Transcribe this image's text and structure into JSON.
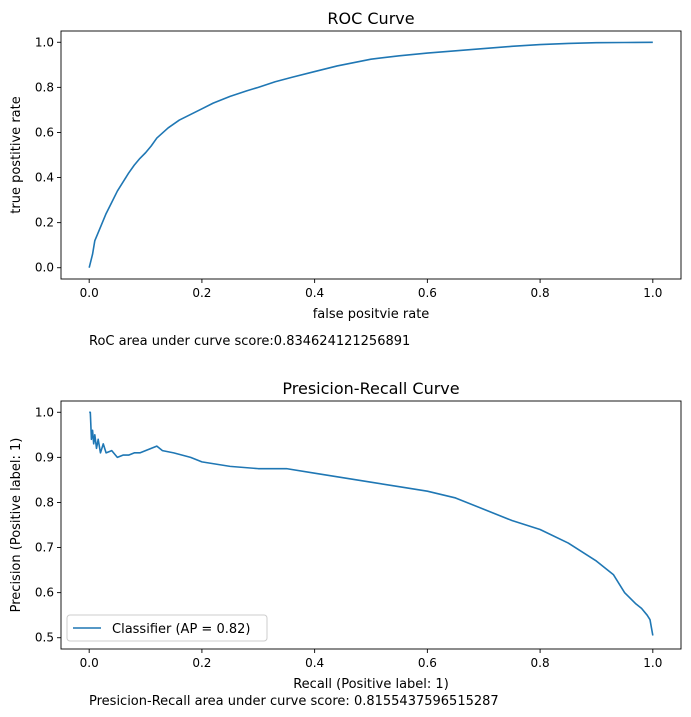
{
  "chart_data": [
    {
      "type": "line",
      "title": "ROC Curve",
      "xlabel": "false positvie rate",
      "ylabel": "true postitive rate",
      "xlim": [
        -0.05,
        1.05
      ],
      "ylim": [
        -0.05,
        1.05
      ],
      "xticks": [
        "0.0",
        "0.2",
        "0.4",
        "0.6",
        "0.8",
        "1.0"
      ],
      "yticks": [
        "0.0",
        "0.2",
        "0.4",
        "0.6",
        "0.8",
        "1.0"
      ],
      "grid": false,
      "color": "#1f77b4",
      "caption": "RoC area under curve score:0.834624121256891",
      "series": [
        {
          "x": [
            0.0,
            0.003,
            0.006,
            0.01,
            0.015,
            0.02,
            0.03,
            0.04,
            0.05,
            0.06,
            0.07,
            0.08,
            0.09,
            0.1,
            0.11,
            0.12,
            0.14,
            0.16,
            0.18,
            0.2,
            0.22,
            0.25,
            0.28,
            0.3,
            0.33,
            0.36,
            0.4,
            0.44,
            0.48,
            0.5,
            0.55,
            0.6,
            0.65,
            0.7,
            0.75,
            0.8,
            0.85,
            0.9,
            0.95,
            1.0
          ],
          "y": [
            0.0,
            0.03,
            0.06,
            0.12,
            0.15,
            0.18,
            0.24,
            0.29,
            0.34,
            0.38,
            0.42,
            0.455,
            0.485,
            0.51,
            0.54,
            0.575,
            0.62,
            0.655,
            0.68,
            0.705,
            0.73,
            0.76,
            0.785,
            0.8,
            0.825,
            0.845,
            0.87,
            0.895,
            0.915,
            0.925,
            0.94,
            0.952,
            0.962,
            0.972,
            0.982,
            0.99,
            0.995,
            0.998,
            0.999,
            1.0
          ]
        }
      ]
    },
    {
      "type": "line",
      "title": "Presicion-Recall Curve",
      "xlabel": "Recall (Positive label: 1)",
      "ylabel": "Precision (Positive label: 1)",
      "xlim": [
        -0.05,
        1.05
      ],
      "ylim": [
        0.475,
        1.025
      ],
      "xticks": [
        "0.0",
        "0.2",
        "0.4",
        "0.6",
        "0.8",
        "1.0"
      ],
      "yticks": [
        "0.5",
        "0.6",
        "0.7",
        "0.8",
        "0.9",
        "1.0"
      ],
      "grid": false,
      "legend_position": "lower-left",
      "color": "#1f77b4",
      "caption": "Presicion-Recall area under curve score: 0.8155437596515287",
      "series": [
        {
          "name": "Classifier (AP = 0.82)",
          "x": [
            0.0,
            0.002,
            0.004,
            0.006,
            0.008,
            0.01,
            0.013,
            0.016,
            0.02,
            0.025,
            0.03,
            0.04,
            0.05,
            0.06,
            0.07,
            0.08,
            0.09,
            0.1,
            0.11,
            0.12,
            0.13,
            0.15,
            0.18,
            0.2,
            0.25,
            0.3,
            0.35,
            0.4,
            0.45,
            0.5,
            0.55,
            0.6,
            0.65,
            0.7,
            0.75,
            0.8,
            0.85,
            0.9,
            0.93,
            0.95,
            0.97,
            0.98,
            0.99,
            0.995,
            1.0
          ],
          "y": [
            1.0,
            1.0,
            0.94,
            0.96,
            0.93,
            0.95,
            0.92,
            0.94,
            0.91,
            0.93,
            0.91,
            0.915,
            0.9,
            0.905,
            0.905,
            0.91,
            0.91,
            0.915,
            0.92,
            0.925,
            0.915,
            0.91,
            0.9,
            0.89,
            0.88,
            0.875,
            0.875,
            0.865,
            0.855,
            0.845,
            0.835,
            0.825,
            0.81,
            0.785,
            0.76,
            0.74,
            0.71,
            0.67,
            0.64,
            0.6,
            0.575,
            0.565,
            0.55,
            0.54,
            0.505
          ]
        }
      ]
    }
  ]
}
